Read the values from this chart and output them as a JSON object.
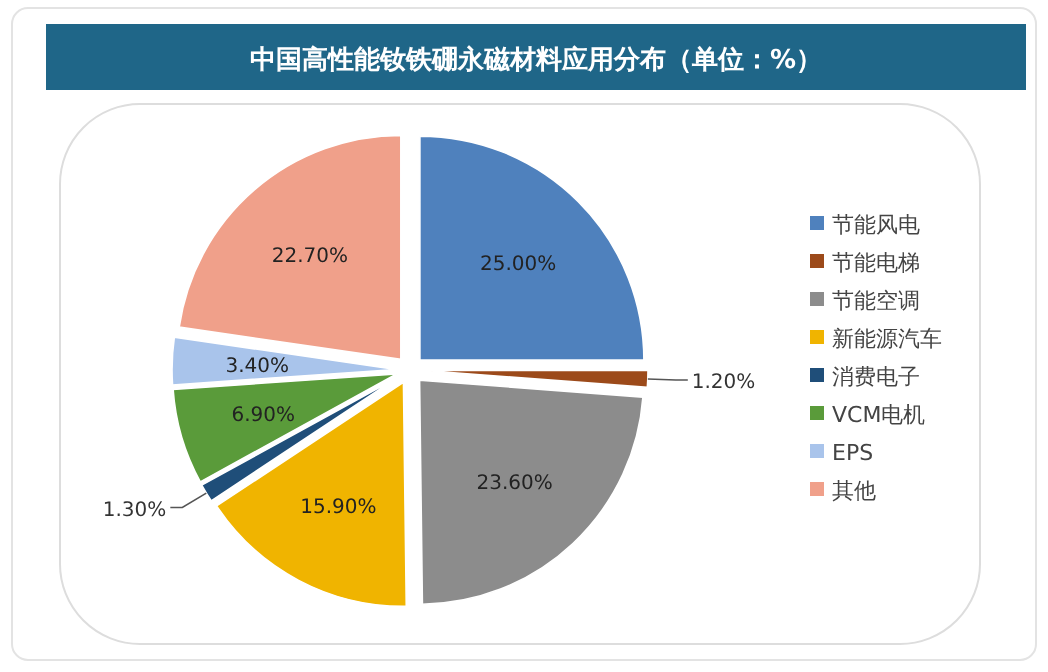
{
  "chart_data": {
    "type": "pie",
    "title": "中国高性能钕铁硼永磁材料应用分布（单位：%）",
    "categories": [
      "节能风电",
      "节能电梯",
      "节能空调",
      "新能源汽车",
      "消费电子",
      "VCM电机",
      "EPS",
      "其他"
    ],
    "values": [
      25.0,
      1.2,
      23.6,
      15.9,
      1.3,
      6.9,
      3.4,
      22.7
    ],
    "colors": [
      "#4f81bd",
      "#9c4a1a",
      "#8c8c8c",
      "#f0b400",
      "#1f4e79",
      "#5a9b3a",
      "#a9c4eb",
      "#f0a08a"
    ],
    "value_labels": [
      "25.00%",
      "1.20%",
      "23.60%",
      "15.90%",
      "1.30%",
      "6.90%",
      "3.40%",
      "22.70%"
    ],
    "legend": "right"
  }
}
